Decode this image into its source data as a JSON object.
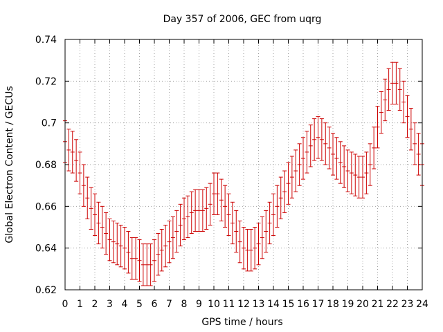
{
  "chart_data": {
    "type": "scatter",
    "title": "Day 357 of 2006, GEC from uqrg",
    "xlabel": "GPS time / hours",
    "ylabel": "Global Electron Content / GECUs",
    "xlim": [
      0,
      24
    ],
    "ylim": [
      0.62,
      0.74
    ],
    "xticks": [
      0,
      1,
      2,
      3,
      4,
      5,
      6,
      7,
      8,
      9,
      10,
      11,
      12,
      13,
      14,
      15,
      16,
      17,
      18,
      19,
      20,
      21,
      22,
      23,
      24
    ],
    "yticks": [
      0.62,
      0.64,
      0.66,
      0.68,
      0.7,
      0.72,
      0.74
    ],
    "ytick_labels": [
      "0.62",
      "0.64",
      "0.66",
      "0.68",
      "0.7",
      "0.72",
      "0.74"
    ],
    "grid": true,
    "legend": "none",
    "error_bar_half_width": 0.01,
    "series_color": "#cc0000",
    "series": [
      {
        "x": [
          0,
          0.25,
          0.5,
          0.75,
          1,
          1.25,
          1.5,
          1.75,
          2,
          2.25,
          2.5,
          2.75,
          3,
          3.25,
          3.5,
          3.75,
          4,
          4.25,
          4.5,
          4.75,
          5,
          5.25,
          5.5,
          5.75,
          6,
          6.25,
          6.5,
          6.75,
          7,
          7.25,
          7.5,
          7.75,
          8,
          8.25,
          8.5,
          8.75,
          9,
          9.25,
          9.5,
          9.75,
          10,
          10.25,
          10.5,
          10.75,
          11,
          11.25,
          11.5,
          11.75,
          12,
          12.25,
          12.5,
          12.75,
          13,
          13.25,
          13.5,
          13.75,
          14,
          14.25,
          14.5,
          14.75,
          15,
          15.25,
          15.5,
          15.75,
          16,
          16.25,
          16.5,
          16.75,
          17,
          17.25,
          17.5,
          17.75,
          18,
          18.25,
          18.5,
          18.75,
          19,
          19.25,
          19.5,
          19.75,
          20,
          20.25,
          20.5,
          20.75,
          21,
          21.25,
          21.5,
          21.75,
          22,
          22.25,
          22.5,
          22.75,
          23,
          23.25,
          23.5,
          23.75,
          24
        ],
        "y": [
          0.691,
          0.687,
          0.686,
          0.682,
          0.676,
          0.67,
          0.664,
          0.659,
          0.656,
          0.652,
          0.65,
          0.647,
          0.644,
          0.643,
          0.642,
          0.641,
          0.64,
          0.638,
          0.635,
          0.635,
          0.634,
          0.632,
          0.632,
          0.632,
          0.634,
          0.637,
          0.639,
          0.641,
          0.643,
          0.645,
          0.648,
          0.651,
          0.654,
          0.655,
          0.657,
          0.658,
          0.658,
          0.658,
          0.659,
          0.661,
          0.666,
          0.666,
          0.663,
          0.66,
          0.656,
          0.652,
          0.648,
          0.643,
          0.64,
          0.639,
          0.639,
          0.64,
          0.642,
          0.645,
          0.648,
          0.652,
          0.656,
          0.66,
          0.664,
          0.667,
          0.671,
          0.674,
          0.677,
          0.68,
          0.683,
          0.686,
          0.689,
          0.692,
          0.693,
          0.692,
          0.69,
          0.688,
          0.685,
          0.683,
          0.681,
          0.679,
          0.677,
          0.676,
          0.675,
          0.674,
          0.674,
          0.676,
          0.68,
          0.688,
          0.698,
          0.705,
          0.711,
          0.716,
          0.719,
          0.719,
          0.716,
          0.71,
          0.703,
          0.697,
          0.69,
          0.685,
          0.68
        ]
      }
    ]
  }
}
